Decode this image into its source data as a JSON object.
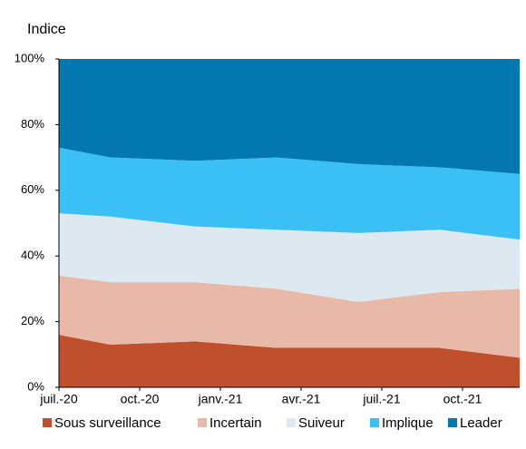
{
  "chart_data": {
    "type": "stacked_area",
    "ylabel": "Indice",
    "categories": [
      null,
      null,
      null,
      null,
      null,
      null,
      null
    ],
    "xticks": [
      "juil.-20",
      "oct.-20",
      "janv.-21",
      "avr.-21",
      "juil.-21",
      "oct.-21"
    ],
    "series": [
      {
        "name": "Sous surveillance",
        "color": "#c0502d",
        "values": [
          16,
          13,
          14,
          12,
          12,
          12,
          9
        ]
      },
      {
        "name": "Incertain",
        "color": "#e8b9a8",
        "values": [
          18,
          19,
          18,
          18,
          14,
          17,
          21
        ]
      },
      {
        "name": "Suiveur",
        "color": "#dde8f0",
        "values": [
          19,
          20,
          17,
          18,
          21,
          19,
          15
        ]
      },
      {
        "name": "Implique",
        "color": "#3bc0f5",
        "values": [
          20,
          18,
          20,
          22,
          21,
          19,
          20
        ]
      },
      {
        "name": "Leader",
        "color": "#0277b0",
        "values": [
          27,
          30,
          31,
          30,
          32,
          33,
          35
        ]
      }
    ],
    "ylim": [
      0,
      100
    ],
    "yticks": [
      {
        "value": 0,
        "label": "0%"
      },
      {
        "value": 20,
        "label": "20%"
      },
      {
        "value": 40,
        "label": "40%"
      },
      {
        "value": 60,
        "label": "60%"
      },
      {
        "value": 80,
        "label": "80%"
      },
      {
        "value": 100,
        "label": "100%"
      }
    ],
    "legend": "bottom"
  }
}
